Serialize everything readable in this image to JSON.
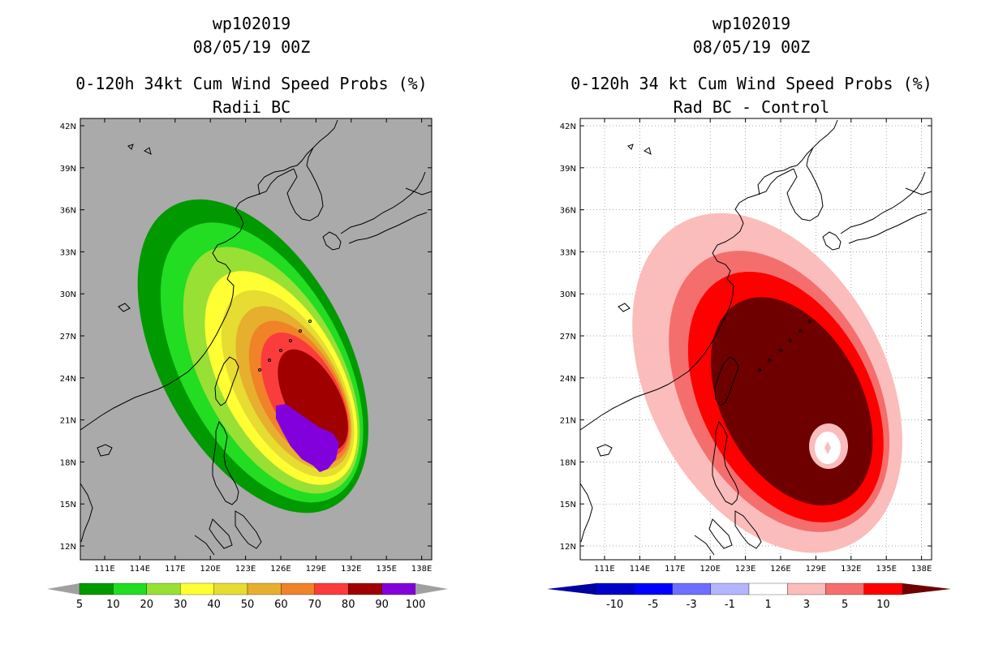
{
  "left_panel": {
    "title_line1": "wp102019",
    "title_line2": "08/05/19 00Z",
    "title_line3": "0-120h 34kt Cum Wind Speed Probs (%)",
    "title_line4": "Radii BC",
    "colorbar": {
      "labels": [
        "5",
        "10",
        "20",
        "30",
        "40",
        "50",
        "60",
        "70",
        "80",
        "90",
        "100"
      ],
      "colors": [
        "#009a00",
        "#22dd22",
        "#99e034",
        "#ffff33",
        "#e6dc32",
        "#e6af2d",
        "#f08228",
        "#fa3c3c",
        "#a00000",
        "#8200dc"
      ],
      "arrow_color": "#a0a0a0"
    },
    "background_color": "#aaaaaa"
  },
  "right_panel": {
    "title_line1": "wp102019",
    "title_line2": "08/05/19 00Z",
    "title_line3": "0-120h 34 kt Cum Wind Speed Probs (%)",
    "title_line4": "Rad BC - Control",
    "colorbar": {
      "labels": [
        "-10",
        "-5",
        "-3",
        "-1",
        "1",
        "3",
        "5",
        "10"
      ],
      "colors": [
        "#0000c8",
        "#0000ff",
        "#6e6eff",
        "#b4b4ff",
        "#ffffff",
        "#fbbcbc",
        "#f56e6e",
        "#ff0000"
      ],
      "left_arrow_color": "#0000a0",
      "right_arrow_color": "#6e0000"
    }
  },
  "map": {
    "lat_labels": [
      "42N",
      "39N",
      "36N",
      "33N",
      "30N",
      "27N",
      "24N",
      "21N",
      "18N",
      "15N",
      "12N"
    ],
    "lon_labels": [
      "111E",
      "114E",
      "117E",
      "120E",
      "123E",
      "126E",
      "129E",
      "132E",
      "135E",
      "138E"
    ]
  }
}
